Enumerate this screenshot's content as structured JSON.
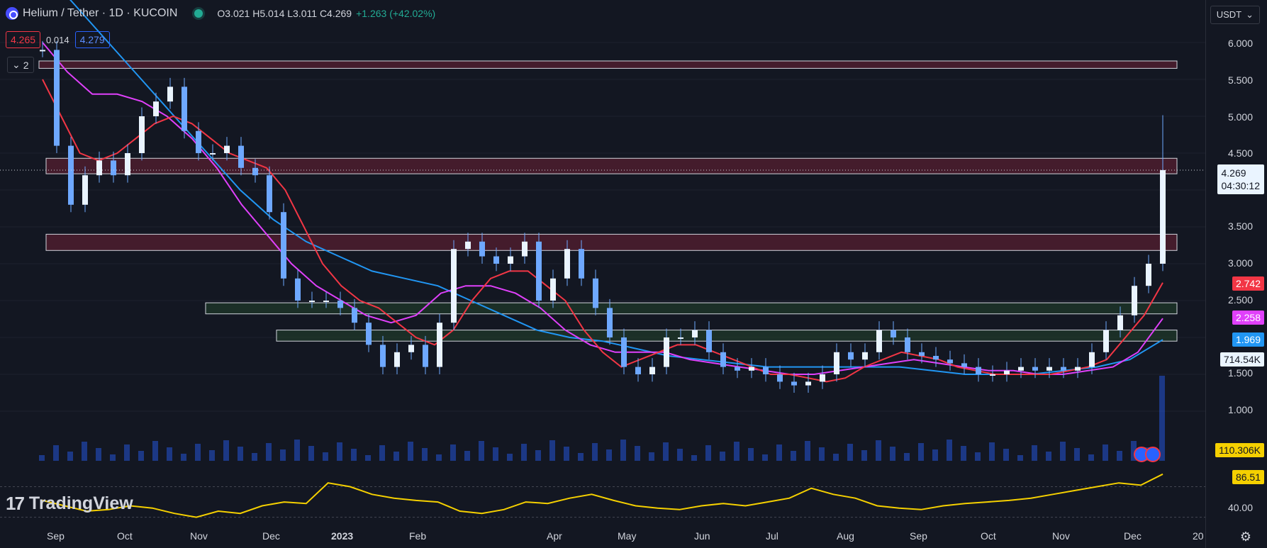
{
  "header": {
    "symbol": "Helium / Tether · 1D · KUCOIN",
    "ohlc": "O3.021 H5.014 L3.011 C4.269",
    "change": "+1.263 (+42.02%)"
  },
  "trade": {
    "sell": "4.265",
    "spread": "0.014",
    "buy": "4.279"
  },
  "indicators_collapsed": {
    "count": "2"
  },
  "currency": "USDT",
  "price_axis": [
    "6.000",
    "5.500",
    "5.000",
    "4.500",
    "3.500",
    "3.000",
    "2.500",
    "1.500",
    "1.000"
  ],
  "last_price": {
    "value": "4.269",
    "countdown": "04:30:12"
  },
  "ma_labels": {
    "ma_red": "2.742",
    "ma_purple": "2.258",
    "ma_blue": "1.969",
    "volume": "714.54K",
    "vol_ma": "110.306K",
    "rsi": "86.51"
  },
  "rsi_axis": [
    "40.00"
  ],
  "time_axis": [
    "Sep",
    "Oct",
    "Nov",
    "Dec",
    "2023",
    "Feb",
    "Apr",
    "May",
    "Jun",
    "Jul",
    "Aug",
    "Sep",
    "Oct",
    "Nov",
    "Dec",
    "20"
  ],
  "brand": "TradingView",
  "colors": {
    "bg": "#131722",
    "up": "#6ea8ff",
    "ma_red": "#f23645",
    "ma_purple": "#e040fb",
    "ma_blue": "#2196f3",
    "rsi": "#f5d000",
    "zone_red": "#5a2030",
    "zone_green": "#1f3a2a"
  },
  "chart_data": {
    "type": "line",
    "title": "Helium / Tether · 1D · KUCOIN",
    "xlabel": "",
    "ylabel": "",
    "ylim": [
      0.5,
      6.3
    ],
    "zones": [
      {
        "low": 5.65,
        "high": 5.75,
        "kind": "resistance"
      },
      {
        "low": 4.22,
        "high": 4.43,
        "kind": "resistance"
      },
      {
        "low": 3.18,
        "high": 3.4,
        "kind": "resistance"
      },
      {
        "low": 2.32,
        "high": 2.47,
        "kind": "support"
      },
      {
        "low": 1.95,
        "high": 2.1,
        "kind": "support"
      }
    ],
    "series": [
      {
        "name": "Close",
        "values": [
          5.9,
          4.6,
          3.8,
          4.2,
          4.4,
          4.2,
          4.5,
          5.0,
          5.2,
          5.4,
          4.8,
          4.5,
          4.5,
          4.6,
          4.3,
          4.2,
          3.7,
          2.8,
          2.5,
          2.5,
          2.5,
          2.4,
          2.2,
          1.9,
          1.6,
          1.8,
          1.9,
          1.6,
          2.2,
          3.2,
          3.3,
          3.1,
          3.0,
          3.1,
          3.3,
          2.5,
          2.8,
          3.2,
          2.8,
          2.4,
          2.0,
          1.6,
          1.5,
          1.6,
          2.0,
          2.0,
          2.1,
          1.8,
          1.6,
          1.55,
          1.6,
          1.5,
          1.4,
          1.35,
          1.4,
          1.5,
          1.8,
          1.7,
          1.8,
          2.1,
          2.0,
          1.8,
          1.75,
          1.7,
          1.65,
          1.6,
          1.5,
          1.5,
          1.55,
          1.6,
          1.55,
          1.6,
          1.55,
          1.6,
          1.8,
          2.1,
          2.3,
          2.7,
          3.0,
          4.27
        ]
      }
    ],
    "ma_red": [
      5.5,
      5.0,
      4.5,
      4.4,
      4.5,
      4.7,
      4.9,
      5.0,
      4.9,
      4.7,
      4.5,
      4.4,
      4.3,
      4.0,
      3.5,
      3.0,
      2.7,
      2.5,
      2.4,
      2.2,
      2.0,
      1.9,
      2.1,
      2.5,
      2.8,
      2.9,
      2.9,
      2.7,
      2.5,
      2.1,
      1.8,
      1.6,
      1.7,
      1.8,
      1.9,
      1.9,
      1.8,
      1.7,
      1.6,
      1.5,
      1.5,
      1.45,
      1.4,
      1.45,
      1.6,
      1.7,
      1.8,
      1.75,
      1.7,
      1.6,
      1.55,
      1.5,
      1.5,
      1.5,
      1.5,
      1.55,
      1.6,
      1.7,
      2.0,
      2.3,
      2.742
    ],
    "ma_purple": [
      6.0,
      5.6,
      5.3,
      5.3,
      5.2,
      5.0,
      4.7,
      4.3,
      3.8,
      3.4,
      3.0,
      2.7,
      2.5,
      2.3,
      2.2,
      2.3,
      2.6,
      2.7,
      2.7,
      2.6,
      2.4,
      2.1,
      1.9,
      1.8,
      1.8,
      1.8,
      1.7,
      1.65,
      1.6,
      1.55,
      1.5,
      1.5,
      1.55,
      1.6,
      1.65,
      1.7,
      1.65,
      1.6,
      1.55,
      1.55,
      1.5,
      1.5,
      1.55,
      1.6,
      1.8,
      2.258
    ],
    "ma_blue": [
      7.0,
      6.5,
      6.0,
      5.5,
      5.0,
      4.5,
      4.0,
      3.6,
      3.3,
      3.1,
      2.9,
      2.8,
      2.7,
      2.5,
      2.3,
      2.1,
      2.0,
      1.95,
      1.85,
      1.75,
      1.7,
      1.65,
      1.6,
      1.6,
      1.6,
      1.6,
      1.6,
      1.55,
      1.5,
      1.5,
      1.5,
      1.55,
      1.6,
      1.7,
      1.969
    ],
    "rsi": [
      52,
      45,
      38,
      40,
      45,
      42,
      35,
      30,
      38,
      35,
      45,
      50,
      48,
      75,
      70,
      60,
      55,
      52,
      50,
      38,
      35,
      40,
      50,
      48,
      55,
      60,
      52,
      45,
      42,
      40,
      45,
      48,
      45,
      50,
      55,
      68,
      60,
      55,
      45,
      42,
      40,
      45,
      48,
      50,
      52,
      55,
      60,
      65,
      70,
      75,
      72,
      86.51
    ]
  }
}
